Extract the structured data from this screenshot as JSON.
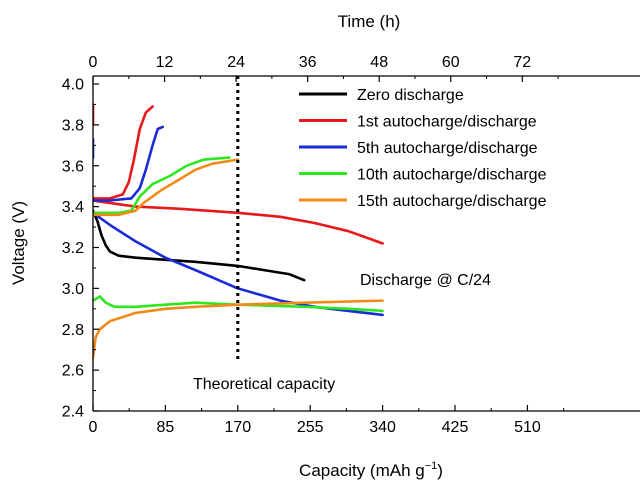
{
  "chart_data": {
    "type": "line",
    "xlabel_main": "Capacity (mAh g",
    "xlabel_sup": "−1",
    "xlabel_close": ")",
    "ylabel": "Voltage (V)",
    "x2label": "Time (h)",
    "xlim": [
      0,
      560
    ],
    "ylim": [
      2.4,
      4.0
    ],
    "x2lim": [
      0,
      80
    ],
    "xticks": [
      0,
      85,
      170,
      255,
      340,
      425,
      510
    ],
    "yticks": [
      2.4,
      2.6,
      2.8,
      3.0,
      3.2,
      3.4,
      3.6,
      3.8,
      4.0
    ],
    "x2ticks": [
      0,
      12,
      24,
      36,
      48,
      60,
      72
    ],
    "xtick_labels": [
      "0",
      "85",
      "170",
      "255",
      "340",
      "425",
      "510"
    ],
    "ytick_labels": [
      "2.4",
      "2.6",
      "2.8",
      "3.0",
      "3.2",
      "3.4",
      "3.6",
      "3.8",
      "4.0"
    ],
    "x2tick_labels": [
      "0",
      "12",
      "24",
      "36",
      "48",
      "60",
      "72"
    ],
    "legend_position": "top-right",
    "grid": false,
    "annotations": {
      "discharge_rate": "Discharge @ C/24",
      "theoretical_capacity": "Theoretical capacity"
    },
    "reference_line": {
      "x": 170,
      "style": "dotted"
    },
    "series": [
      {
        "name": "Zero discharge",
        "color": "#000000",
        "segments": [
          [
            [
              0,
              3.38
            ],
            [
              5,
              3.33
            ],
            [
              10,
              3.26
            ],
            [
              15,
              3.21
            ],
            [
              20,
              3.18
            ],
            [
              30,
              3.16
            ],
            [
              50,
              3.15
            ],
            [
              85,
              3.14
            ],
            [
              120,
              3.13
            ],
            [
              170,
              3.11
            ],
            [
              200,
              3.09
            ],
            [
              230,
              3.07
            ],
            [
              248,
              3.04
            ]
          ]
        ]
      },
      {
        "name": "1st autocharge/discharge",
        "color": "#e8191b",
        "segments": [
          [
            [
              0,
              3.9
            ],
            [
              0,
              3.8
            ]
          ],
          [
            [
              0,
              3.44
            ],
            [
              20,
              3.44
            ],
            [
              35,
              3.46
            ],
            [
              42,
              3.52
            ],
            [
              48,
              3.63
            ],
            [
              55,
              3.78
            ],
            [
              62,
              3.86
            ],
            [
              70,
              3.89
            ]
          ],
          [
            [
              0,
              3.43
            ],
            [
              50,
              3.4
            ],
            [
              100,
              3.39
            ],
            [
              170,
              3.37
            ],
            [
              220,
              3.35
            ],
            [
              260,
              3.32
            ],
            [
              300,
              3.28
            ],
            [
              340,
              3.22
            ]
          ]
        ]
      },
      {
        "name": "5th autocharge/discharge",
        "color": "#1a2ad6",
        "segments": [
          [
            [
              0,
              3.73
            ],
            [
              0,
              3.64
            ]
          ],
          [
            [
              0,
              3.43
            ],
            [
              20,
              3.43
            ],
            [
              45,
              3.44
            ],
            [
              55,
              3.49
            ],
            [
              62,
              3.58
            ],
            [
              70,
              3.7
            ],
            [
              76,
              3.78
            ],
            [
              82,
              3.79
            ]
          ],
          [
            [
              0,
              3.37
            ],
            [
              20,
              3.31
            ],
            [
              50,
              3.23
            ],
            [
              85,
              3.15
            ],
            [
              120,
              3.09
            ],
            [
              170,
              3.0
            ],
            [
              220,
              2.94
            ],
            [
              260,
              2.91
            ],
            [
              300,
              2.89
            ],
            [
              340,
              2.87
            ]
          ]
        ]
      },
      {
        "name": "10th autocharge/discharge",
        "color": "#2ee81f",
        "segments": [
          [
            [
              0,
              3.37
            ],
            [
              30,
              3.37
            ],
            [
              45,
              3.38
            ],
            [
              55,
              3.45
            ],
            [
              70,
              3.51
            ],
            [
              90,
              3.55
            ],
            [
              110,
              3.6
            ],
            [
              130,
              3.63
            ],
            [
              160,
              3.64
            ]
          ],
          [
            [
              0,
              2.94
            ],
            [
              8,
              2.96
            ],
            [
              15,
              2.93
            ],
            [
              25,
              2.91
            ],
            [
              50,
              2.91
            ],
            [
              85,
              2.92
            ],
            [
              120,
              2.93
            ],
            [
              170,
              2.92
            ],
            [
              250,
              2.91
            ],
            [
              300,
              2.9
            ],
            [
              340,
              2.89
            ]
          ]
        ]
      },
      {
        "name": "15th autocharge/discharge",
        "color": "#f28a1a",
        "segments": [
          [
            [
              0,
              3.36
            ],
            [
              30,
              3.36
            ],
            [
              50,
              3.38
            ],
            [
              60,
              3.42
            ],
            [
              80,
              3.48
            ],
            [
              100,
              3.53
            ],
            [
              120,
              3.58
            ],
            [
              140,
              3.61
            ],
            [
              170,
              3.63
            ]
          ],
          [
            [
              0,
              2.66
            ],
            [
              3,
              2.76
            ],
            [
              8,
              2.8
            ],
            [
              20,
              2.84
            ],
            [
              50,
              2.88
            ],
            [
              85,
              2.9
            ],
            [
              120,
              2.91
            ],
            [
              170,
              2.92
            ],
            [
              250,
              2.93
            ],
            [
              340,
              2.94
            ]
          ]
        ]
      }
    ]
  }
}
